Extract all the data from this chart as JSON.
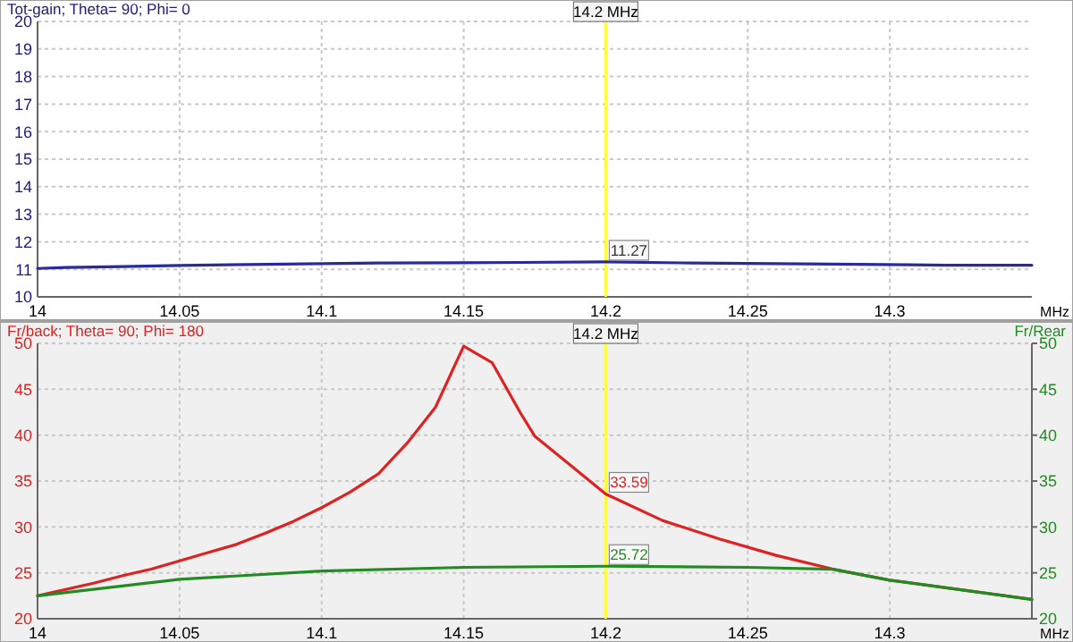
{
  "chart_data": [
    {
      "type": "line",
      "title": "Tot-gain; Theta= 90; Phi= 0",
      "xlabel": "MHz",
      "xlim": [
        14,
        14.35
      ],
      "xticks": [
        14,
        14.05,
        14.1,
        14.15,
        14.2,
        14.25,
        14.3
      ],
      "ylim": [
        10,
        20
      ],
      "yticks": [
        10,
        11,
        12,
        13,
        14,
        15,
        16,
        17,
        18,
        19,
        20
      ],
      "grid": true,
      "series": [
        {
          "color": "#2a2aa0",
          "x": [
            14,
            14.01,
            14.03,
            14.05,
            14.08,
            14.12,
            14.17,
            14.2,
            14.23,
            14.28,
            14.32,
            14.35
          ],
          "values": [
            11.03,
            11.07,
            11.1,
            11.14,
            11.18,
            11.23,
            11.25,
            11.27,
            11.23,
            11.19,
            11.15,
            11.15
          ],
          "value_labels": [
            null,
            null,
            null,
            null,
            null,
            null,
            null,
            "11.27",
            null,
            null,
            null,
            null
          ]
        }
      ],
      "ref_lines": [
        {
          "axis": "x",
          "value": 14.2,
          "label": "14.2 MHz",
          "color": "#ffff33"
        }
      ]
    },
    {
      "type": "line",
      "title": "Fr/back; Theta= 90; Phi= 180",
      "xlabel": "MHz",
      "y2label": "Fr/Rear",
      "xlim": [
        14,
        14.35
      ],
      "xticks": [
        14,
        14.05,
        14.1,
        14.15,
        14.2,
        14.25,
        14.3
      ],
      "ylim": [
        20,
        50
      ],
      "yticks": [
        20,
        25,
        30,
        35,
        40,
        45,
        50
      ],
      "y2lim": [
        20,
        50
      ],
      "y2ticks": [
        20,
        25,
        30,
        35,
        40,
        45,
        50
      ],
      "grid": true,
      "series": [
        {
          "color": "#dd2222",
          "x": [
            14,
            14.02,
            14.03,
            14.04,
            14.05,
            14.06,
            14.07,
            14.08,
            14.09,
            14.1,
            14.11,
            14.12,
            14.13,
            14.14,
            14.15,
            14.16,
            14.17,
            14.175,
            14.2,
            14.22,
            14.24,
            14.26,
            14.28,
            14.3,
            14.35
          ],
          "values": [
            22.5,
            23.9,
            24.7,
            25.4,
            26.3,
            27.2,
            28.1,
            29.3,
            30.6,
            32.1,
            33.8,
            35.8,
            39.1,
            43,
            49.7,
            47.9,
            42.4,
            39.9,
            33.59,
            30.7,
            28.7,
            26.9,
            25.4,
            24.2,
            22.1
          ],
          "value_labels": [
            null,
            null,
            null,
            null,
            null,
            null,
            null,
            null,
            null,
            null,
            null,
            null,
            null,
            null,
            null,
            null,
            null,
            null,
            "33.59",
            null,
            null,
            null,
            null,
            null,
            null
          ]
        },
        {
          "color": "#228b22",
          "axis": "y2",
          "x": [
            14,
            14.05,
            14.1,
            14.15,
            14.2,
            14.25,
            14.28,
            14.3,
            14.35
          ],
          "values": [
            22.5,
            24.3,
            25.2,
            25.6,
            25.72,
            25.6,
            25.4,
            24.2,
            22.1
          ],
          "value_labels": [
            null,
            null,
            null,
            null,
            "25.72",
            null,
            null,
            null,
            null
          ]
        }
      ],
      "ref_lines": [
        {
          "axis": "x",
          "value": 14.2,
          "label": "14.2 MHz",
          "color": "#ffff33"
        }
      ]
    }
  ]
}
